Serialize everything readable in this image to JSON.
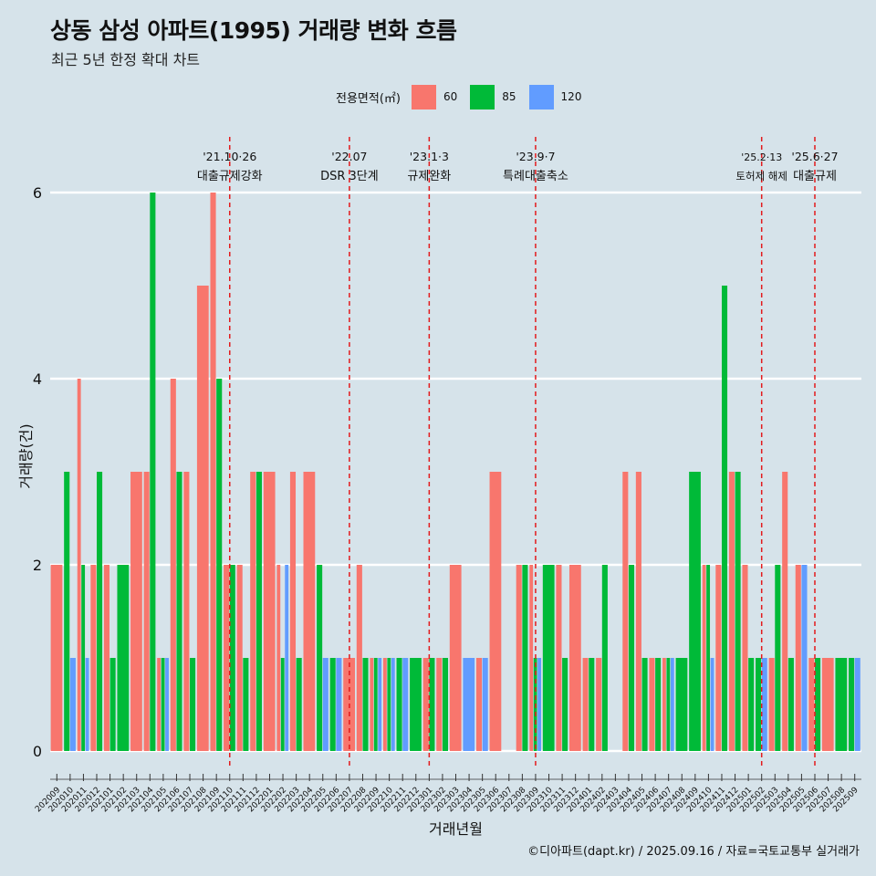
{
  "title": "상동 삼성 아파트(1995) 거래량 변화 흐름",
  "subtitle": "최근 5년 한정 확대 차트",
  "legend": {
    "title": "전용면적(㎡)",
    "items": [
      {
        "label": "60",
        "color": "#f8766d"
      },
      {
        "label": "85",
        "color": "#00ba38"
      },
      {
        "label": "120",
        "color": "#619cff"
      }
    ]
  },
  "caption": "©디아파트(dapt.kr) / 2025.09.16 / 자료=국토교통부 실거래가",
  "chart_data": {
    "type": "bar",
    "xlabel": "거래년월",
    "ylabel": "거래량(건)",
    "ylim": [
      0,
      6
    ],
    "yticks": [
      0,
      2,
      4,
      6
    ],
    "grid": true,
    "legend_position": "top",
    "categories": [
      "202009",
      "202010",
      "202011",
      "202012",
      "202101",
      "202102",
      "202103",
      "202104",
      "202105",
      "202106",
      "202107",
      "202108",
      "202109",
      "202110",
      "202111",
      "202112",
      "202201",
      "202202",
      "202203",
      "202204",
      "202205",
      "202206",
      "202207",
      "202208",
      "202209",
      "202210",
      "202211",
      "202212",
      "202301",
      "202302",
      "202303",
      "202304",
      "202305",
      "202306",
      "202307",
      "202308",
      "202309",
      "202310",
      "202311",
      "202312",
      "202401",
      "202402",
      "202403",
      "202404",
      "202405",
      "202406",
      "202407",
      "202408",
      "202409",
      "202410",
      "202411",
      "202412",
      "202501",
      "202502",
      "202503",
      "202504",
      "202505",
      "202506",
      "202507",
      "202508",
      "202509"
    ],
    "series": [
      {
        "name": "60",
        "color": "#f8766d",
        "values": [
          2,
          0,
          4,
          2,
          2,
          0,
          3,
          3,
          1,
          4,
          3,
          5,
          6,
          2,
          2,
          3,
          3,
          2,
          3,
          3,
          0,
          0,
          1,
          2,
          1,
          1,
          0,
          0,
          1,
          1,
          2,
          0,
          1,
          3,
          0,
          2,
          2,
          0,
          2,
          2,
          1,
          1,
          0,
          3,
          3,
          1,
          1,
          0,
          0,
          2,
          2,
          3,
          2,
          0,
          1,
          3,
          2,
          1,
          1,
          0,
          0
        ]
      },
      {
        "name": "85",
        "color": "#00ba38",
        "values": [
          0,
          3,
          2,
          3,
          1,
          2,
          0,
          6,
          1,
          3,
          1,
          0,
          4,
          2,
          1,
          3,
          0,
          1,
          1,
          0,
          2,
          1,
          0,
          1,
          1,
          1,
          1,
          1,
          1,
          1,
          0,
          0,
          0,
          0,
          0,
          2,
          1,
          2,
          1,
          0,
          1,
          2,
          0,
          2,
          1,
          1,
          1,
          1,
          3,
          2,
          5,
          3,
          1,
          1,
          2,
          1,
          0,
          1,
          0,
          1,
          1
        ]
      },
      {
        "name": "120",
        "color": "#619cff",
        "values": [
          0,
          1,
          1,
          0,
          0,
          0,
          0,
          0,
          1,
          0,
          0,
          0,
          0,
          0,
          0,
          0,
          0,
          2,
          0,
          0,
          1,
          1,
          0,
          0,
          1,
          1,
          1,
          0,
          0,
          0,
          0,
          1,
          1,
          0,
          0,
          0,
          1,
          0,
          0,
          0,
          0,
          0,
          0,
          0,
          0,
          0,
          1,
          0,
          0,
          1,
          0,
          0,
          0,
          1,
          0,
          0,
          2,
          0,
          0,
          0,
          1
        ]
      }
    ],
    "annotations": [
      {
        "date": "'21.10·26",
        "label": "대출규제강화",
        "month": "202110"
      },
      {
        "date": "'22.07",
        "label": "DSR 3단계",
        "month": "202207"
      },
      {
        "date": "'23.1·3",
        "label": "규제완화",
        "month": "202301"
      },
      {
        "date": "'23.9·7",
        "label": "특례대출축소",
        "month": "202309"
      },
      {
        "date": "'25.2·13",
        "label": "토허제 해제",
        "month": "202502"
      },
      {
        "date": "'25.6·27",
        "label": "대출규제",
        "month": "202506"
      }
    ]
  }
}
